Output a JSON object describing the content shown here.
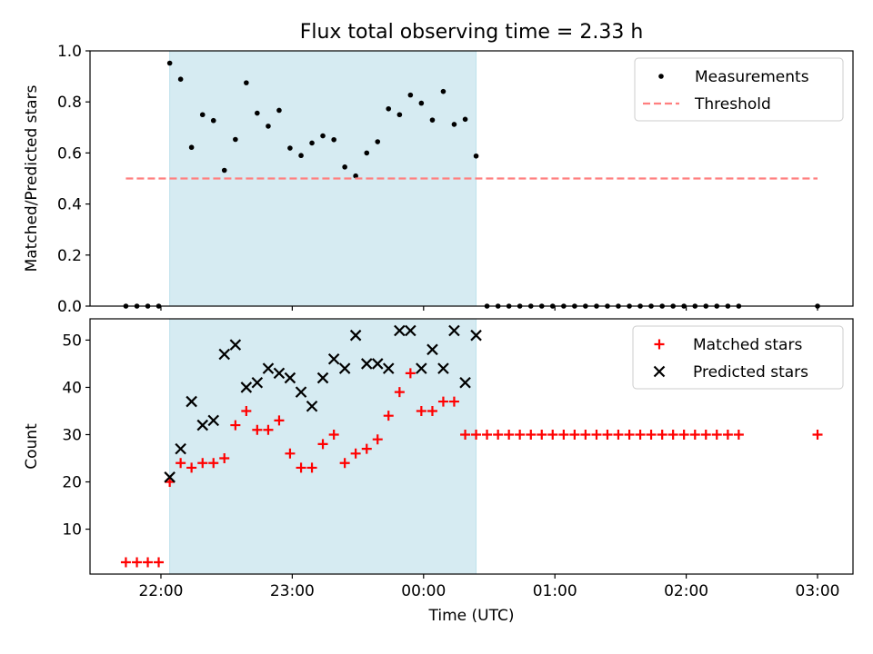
{
  "chart_data": [
    {
      "type": "scatter",
      "title": "Flux total observing time = 2.33 h",
      "xlabel": "",
      "ylabel": "Matched/Predicted stars",
      "x_unit": "hours since 22:00 UTC",
      "xlim": [
        -0.54,
        5.27
      ],
      "ylim": [
        0,
        1.0
      ],
      "yticks": [
        0.0,
        0.2,
        0.4,
        0.6,
        0.8,
        1.0
      ],
      "yticklabels": [
        "0.0",
        "0.2",
        "0.4",
        "0.6",
        "0.8",
        "1.0"
      ],
      "xticks": [
        0,
        1,
        2,
        3,
        4,
        5
      ],
      "xticklabels": [
        "",
        "",
        "",
        "",
        "",
        ""
      ],
      "shaded_span": {
        "from": 0.0667,
        "to": 2.4,
        "color": "#add8e6"
      },
      "legend_position": "top-right",
      "series": [
        {
          "name": "Measurements",
          "kind": "points",
          "color": "#000000",
          "x": [
            -0.267,
            -0.183,
            -0.1,
            -0.017,
            0.067,
            0.15,
            0.233,
            0.317,
            0.4,
            0.483,
            0.567,
            0.65,
            0.733,
            0.817,
            0.9,
            0.983,
            1.067,
            1.15,
            1.233,
            1.317,
            1.4,
            1.483,
            1.567,
            1.65,
            1.733,
            1.817,
            1.9,
            1.983,
            2.067,
            2.15,
            2.233,
            2.317,
            2.4,
            2.483,
            2.567,
            2.65,
            2.733,
            2.817,
            2.9,
            2.983,
            3.067,
            3.15,
            3.233,
            3.317,
            3.4,
            3.483,
            3.567,
            3.65,
            3.733,
            3.817,
            3.9,
            3.983,
            4.067,
            4.15,
            4.233,
            4.317,
            4.4,
            5.0
          ],
          "y": [
            0,
            0,
            0,
            0,
            0.952,
            0.889,
            0.622,
            0.75,
            0.727,
            0.532,
            0.653,
            0.875,
            0.756,
            0.705,
            0.767,
            0.619,
            0.59,
            0.639,
            0.667,
            0.652,
            0.545,
            0.51,
            0.6,
            0.644,
            0.773,
            0.75,
            0.827,
            0.795,
            0.729,
            0.841,
            0.712,
            0.732,
            0.588,
            0,
            0,
            0,
            0,
            0,
            0,
            0,
            0,
            0,
            0,
            0,
            0,
            0,
            0,
            0,
            0,
            0,
            0,
            0,
            0,
            0,
            0,
            0,
            0,
            0
          ]
        },
        {
          "name": "Threshold",
          "kind": "dashed-line",
          "color": "#ff7f7f",
          "x": [
            -0.267,
            5.0
          ],
          "y": [
            0.5,
            0.5
          ]
        }
      ]
    },
    {
      "type": "scatter",
      "title": "",
      "xlabel": "Time (UTC)",
      "ylabel": "Count",
      "x_unit": "hours since 22:00 UTC",
      "xlim": [
        -0.54,
        5.27
      ],
      "ylim": [
        0.5,
        54.5
      ],
      "yticks": [
        10,
        20,
        30,
        40,
        50
      ],
      "yticklabels": [
        "10",
        "20",
        "30",
        "40",
        "50"
      ],
      "xticks": [
        0,
        1,
        2,
        3,
        4,
        5
      ],
      "xticklabels": [
        "22:00",
        "23:00",
        "00:00",
        "01:00",
        "02:00",
        "03:00"
      ],
      "shaded_span": {
        "from": 0.0667,
        "to": 2.4,
        "color": "#add8e6"
      },
      "legend_position": "top-right",
      "series": [
        {
          "name": "Matched stars",
          "kind": "plus",
          "color": "#ff0000",
          "x": [
            -0.267,
            -0.183,
            -0.1,
            -0.017,
            0.067,
            0.15,
            0.233,
            0.317,
            0.4,
            0.483,
            0.567,
            0.65,
            0.733,
            0.817,
            0.9,
            0.983,
            1.067,
            1.15,
            1.233,
            1.317,
            1.4,
            1.483,
            1.567,
            1.65,
            1.733,
            1.817,
            1.9,
            1.983,
            2.067,
            2.15,
            2.233,
            2.317,
            2.4,
            2.483,
            2.567,
            2.65,
            2.733,
            2.817,
            2.9,
            2.983,
            3.067,
            3.15,
            3.233,
            3.317,
            3.4,
            3.483,
            3.567,
            3.65,
            3.733,
            3.817,
            3.9,
            3.983,
            4.067,
            4.15,
            4.233,
            4.317,
            4.4,
            5.0
          ],
          "y": [
            3,
            3,
            3,
            3,
            20,
            24,
            23,
            24,
            24,
            25,
            32,
            35,
            31,
            31,
            33,
            26,
            23,
            23,
            28,
            30,
            24,
            26,
            27,
            29,
            34,
            39,
            43,
            35,
            35,
            37,
            37,
            30,
            30,
            30,
            30,
            30,
            30,
            30,
            30,
            30,
            30,
            30,
            30,
            30,
            30,
            30,
            30,
            30,
            30,
            30,
            30,
            30,
            30,
            30,
            30,
            30,
            30,
            30
          ]
        },
        {
          "name": "Predicted stars",
          "kind": "x",
          "color": "#000000",
          "x": [
            0.067,
            0.15,
            0.233,
            0.317,
            0.4,
            0.483,
            0.567,
            0.65,
            0.733,
            0.817,
            0.9,
            0.983,
            1.067,
            1.15,
            1.233,
            1.317,
            1.4,
            1.483,
            1.567,
            1.65,
            1.733,
            1.817,
            1.9,
            1.983,
            2.067,
            2.15,
            2.233,
            2.317,
            2.4
          ],
          "y": [
            21,
            27,
            37,
            32,
            33,
            47,
            49,
            40,
            41,
            44,
            43,
            42,
            39,
            36,
            42,
            46,
            44,
            51,
            45,
            45,
            44,
            52,
            52,
            44,
            48,
            44,
            52,
            41,
            51
          ]
        }
      ]
    }
  ]
}
